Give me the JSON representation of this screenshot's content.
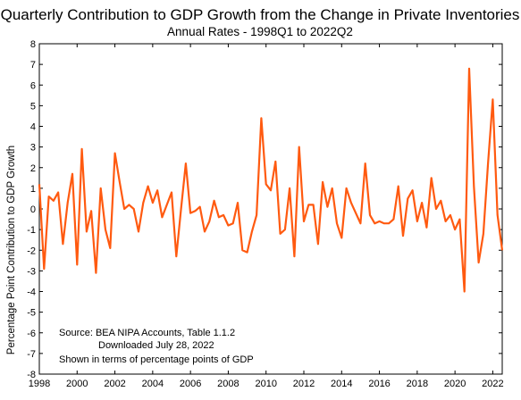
{
  "chart_data": {
    "type": "line",
    "title": "Quarterly Contribution to GDP Growth from the Change in Private Inventories",
    "subtitle": "Annual Rates - 1998Q1 to 2022Q2",
    "xlabel": "",
    "ylabel": "Percentage Point Contribution to GDP Growth",
    "xlim": [
      1998.0,
      2022.5
    ],
    "ylim": [
      -8,
      8
    ],
    "yticks": [
      8,
      7,
      6,
      5,
      4,
      3,
      2,
      1,
      0,
      -1,
      -2,
      -3,
      -4,
      -5,
      -6,
      -7,
      -8
    ],
    "xticks": [
      1998,
      2000,
      2002,
      2004,
      2006,
      2008,
      2010,
      2012,
      2014,
      2016,
      2018,
      2020,
      2022
    ],
    "grid": false,
    "line_color": "#ff5a10",
    "notes": [
      "Source:  BEA NIPA Accounts, Table 1.1.2",
      "Downloaded July 28, 2022",
      "Shown in terms of percentage points of GDP"
    ],
    "series": [
      {
        "values": [
          1.2,
          -2.9,
          0.6,
          0.4,
          0.8,
          -1.7,
          0.3,
          1.7,
          -2.7,
          2.9,
          -1.1,
          -0.1,
          -3.1,
          1.0,
          -1.0,
          -1.9,
          2.7,
          1.3,
          0.0,
          0.2,
          0.0,
          -1.1,
          0.3,
          1.1,
          0.3,
          0.9,
          -0.4,
          0.2,
          0.8,
          -2.3,
          0.0,
          2.2,
          -0.2,
          -0.1,
          0.1,
          -1.1,
          -0.6,
          0.4,
          -0.4,
          -0.3,
          -0.8,
          -0.7,
          0.3,
          -2.0,
          -2.1,
          -1.1,
          -0.3,
          4.4,
          1.2,
          0.9,
          2.3,
          -1.2,
          -1.0,
          1.0,
          -2.3,
          3.0,
          -0.6,
          0.2,
          0.2,
          -1.7,
          1.3,
          0.1,
          1.0,
          -0.7,
          -1.4,
          1.0,
          0.3,
          -0.2,
          -0.7,
          2.2,
          -0.3,
          -0.7,
          -0.6,
          -0.7,
          -0.7,
          -0.5,
          1.1,
          -1.3,
          0.5,
          0.9,
          -0.6,
          0.3,
          -0.9,
          1.5,
          0.0,
          0.4,
          -0.6,
          -0.3,
          -1.0,
          -0.5,
          -4.0,
          6.8,
          1.1,
          -2.6,
          -1.2,
          2.2,
          5.3,
          -0.3,
          -2.0
        ]
      }
    ]
  }
}
